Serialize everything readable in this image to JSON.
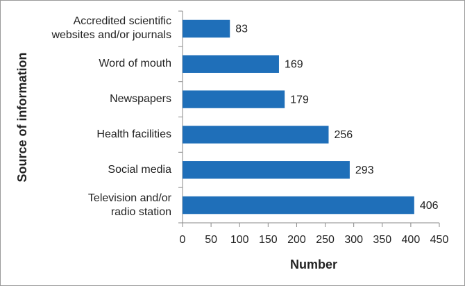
{
  "chart_data": {
    "type": "hbar",
    "y_label": "Source of information",
    "x_label": "Number",
    "categories": [
      "Accredited scientific\nwebsites and/or journals",
      "Word of mouth",
      "Newspapers",
      "Health facilities",
      "Social media",
      "Television and/or\nradio station"
    ],
    "values": [
      83,
      169,
      179,
      256,
      293,
      406
    ],
    "color": "#1f6fb9",
    "xlim": [
      0,
      450
    ],
    "xticks": [
      0,
      50,
      100,
      150,
      200,
      250,
      300,
      350,
      400,
      450
    ]
  }
}
